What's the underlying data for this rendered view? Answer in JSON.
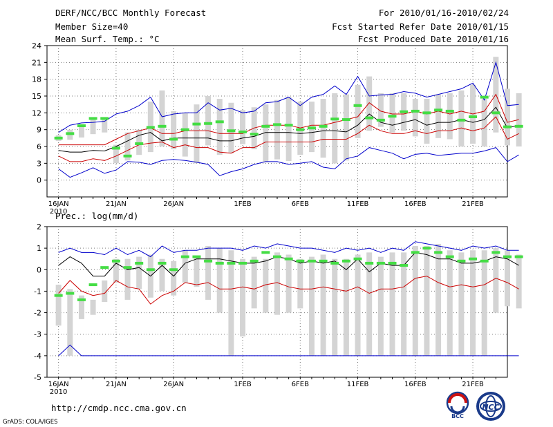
{
  "header": {
    "title": "DERF/NCC/BCC Monthly Forecast",
    "member_size": "Member Size=40",
    "variable": "Mean Surf. Temp.: °C",
    "period": "For 2010/01/16-2010/02/24",
    "start_date": "Fcst Started Refer Date 2010/01/15",
    "produced": "Fcst Produced Date 2010/01/16"
  },
  "footer": {
    "url": "http://cmdp.ncc.cma.gov.cn",
    "grads": "GrADS: COLA/IGES",
    "logo_left_text": "BCC",
    "logo_right_text": "NCC"
  },
  "colors": {
    "max_line": "#0000cc",
    "spread_line": "#cc0000",
    "mean_line": "#000000",
    "box": "#d4d4d4",
    "obs_marker": "#44dd44",
    "grid": "#777777"
  },
  "chart_data": [
    {
      "type": "line",
      "title": "Mean Surf. Temp.: °C",
      "x_labels": [
        "16JAN\n2010",
        "21JAN",
        "26JAN",
        "1FEB",
        "6FEB",
        "11FEB",
        "16FEB",
        "21FEB"
      ],
      "x_label_days": [
        0,
        5,
        10,
        16,
        21,
        26,
        31,
        36
      ],
      "x_range": [
        -1,
        39
      ],
      "ylim": [
        -3,
        24
      ],
      "yticks": [
        0,
        3,
        6,
        9,
        12,
        15,
        18,
        21,
        24
      ],
      "series": [
        {
          "name": "max",
          "values": [
            2,
            0.5,
            1.3,
            2.2,
            1.2,
            1.8,
            3.3,
            3.2,
            2.8,
            3.5,
            3.7,
            3.5,
            3.2,
            2.8,
            0.8,
            1.5,
            2,
            2.8,
            3.3,
            3.3,
            2.8,
            3,
            3.3,
            2.3,
            2,
            3.8,
            4.3,
            5.8,
            5.3,
            4.8,
            3.8,
            4.6,
            4.8,
            4.4,
            4.6,
            4.8,
            4.8,
            5.2,
            5.8,
            3.3,
            4.5
          ]
        },
        {
          "name": "q_low",
          "values": [
            4.3,
            3.3,
            3.3,
            3.8,
            3.5,
            4.3,
            5.3,
            6.3,
            6.6,
            6.8,
            5.8,
            6.3,
            5.8,
            5.8,
            5,
            4.8,
            5.8,
            5.8,
            6.8,
            6.8,
            6.8,
            6.8,
            6.8,
            7.3,
            7.3,
            7.3,
            8.3,
            9.8,
            8.8,
            8.3,
            8.3,
            8.8,
            8.3,
            8.8,
            8.8,
            9.3,
            8.8,
            9.3,
            11.3,
            7.3,
            8.3
          ]
        },
        {
          "name": "mean",
          "values": [
            5.3,
            5,
            5,
            5.3,
            5.2,
            6,
            7,
            8,
            8.5,
            7,
            7.5,
            7.5,
            7.5,
            7.5,
            7,
            7,
            7.5,
            7.8,
            8.5,
            8.5,
            8.5,
            8.3,
            8.5,
            8.8,
            8.8,
            8.6,
            9.8,
            11.8,
            10.3,
            9.8,
            10.3,
            10.8,
            9.8,
            10.3,
            10.3,
            10.8,
            10.3,
            10.8,
            13,
            9.3,
            9.8
          ]
        },
        {
          "name": "q_high",
          "values": [
            6.3,
            6.3,
            6.3,
            6.3,
            6.3,
            7.3,
            8.3,
            8.8,
            9.3,
            8.3,
            8.3,
            8.8,
            8.8,
            8.8,
            8.3,
            8.3,
            8.3,
            9.3,
            9.8,
            9.8,
            9.8,
            9.3,
            9.8,
            9.8,
            10.3,
            10.8,
            11.3,
            13.8,
            12.3,
            11.8,
            11.8,
            12.3,
            11.8,
            12.3,
            11.8,
            12.3,
            11.8,
            12.3,
            15.3,
            10.3,
            10.8
          ]
        },
        {
          "name": "min_top",
          "values": [
            8.5,
            9.8,
            10.2,
            10.3,
            10.5,
            11.8,
            12.3,
            13.3,
            14.8,
            11.3,
            11.8,
            12,
            12,
            13.8,
            12.5,
            12.8,
            12,
            12.3,
            13.8,
            14,
            14.8,
            13.3,
            14.8,
            15.3,
            16.8,
            15.3,
            18.5,
            15,
            15.2,
            15.3,
            15.8,
            15.5,
            14.8,
            15.3,
            15.8,
            16.3,
            17.3,
            14.3,
            21,
            13.3,
            13.5
          ]
        },
        {
          "name": "box_low",
          "values": [
            7,
            7.2,
            7.6,
            8.2,
            8.5,
            3,
            3.5,
            4.5,
            5,
            6,
            5.5,
            4.2,
            3,
            6.2,
            4.5,
            4.8,
            6.4,
            5.5,
            3.2,
            3.7,
            3.4,
            4.5,
            5,
            4,
            3,
            3.5,
            7.5,
            8.8,
            9.5,
            8.5,
            8.8,
            7.8,
            6.5,
            7.5,
            7.3,
            6,
            6.5,
            6,
            8.5,
            6.2,
            6
          ]
        },
        {
          "name": "box_high",
          "values": [
            8,
            9,
            10,
            11.2,
            11.2,
            6.3,
            8.5,
            9,
            14,
            16,
            12.3,
            12,
            13.5,
            15,
            14.5,
            13.8,
            12.5,
            13,
            13.5,
            14.3,
            14.8,
            14,
            14,
            14.5,
            15.5,
            15.3,
            17,
            18.5,
            15.5,
            15.5,
            15.5,
            14.5,
            14.5,
            15.3,
            15.5,
            16,
            17,
            14.5,
            22,
            16.3,
            15.5
          ]
        },
        {
          "name": "observed",
          "values": [
            7.5,
            8.3,
            9.7,
            11,
            11,
            5.7,
            4.3,
            6.5,
            9.4,
            9.6,
            7.3,
            9,
            10,
            10.1,
            10.4,
            8.8,
            8.6,
            8.2,
            9.6,
            9.9,
            9.8,
            9,
            9.3,
            9.6,
            10.9,
            10.8,
            13.3,
            11.1,
            10.7,
            11.4,
            12.2,
            12.3,
            12,
            12.5,
            12.3,
            10.7,
            11.3,
            14.8,
            12,
            9.5,
            9.6
          ]
        }
      ]
    },
    {
      "type": "line",
      "title": "Prec.: log(mm/d)",
      "x_labels": [
        "16JAN\n2010",
        "21JAN",
        "26JAN",
        "1FEB",
        "6FEB",
        "11FEB",
        "16FEB",
        "21FEB"
      ],
      "x_label_days": [
        0,
        5,
        10,
        16,
        21,
        26,
        31,
        36
      ],
      "x_range": [
        -1,
        39
      ],
      "ylim": [
        -5,
        2
      ],
      "yticks": [
        -5,
        -4,
        -3,
        -2,
        -1,
        0,
        1,
        2
      ],
      "series": [
        {
          "name": "max",
          "values": [
            0.8,
            1,
            0.8,
            0.8,
            0.7,
            1,
            0.7,
            0.9,
            0.6,
            1.1,
            0.8,
            0.9,
            0.9,
            1,
            1,
            1,
            0.9,
            1.1,
            1,
            1.2,
            1.1,
            1,
            1,
            0.9,
            0.8,
            1,
            0.9,
            1,
            0.8,
            1,
            0.9,
            1.3,
            1.2,
            1.1,
            1,
            0.9,
            1.1,
            1,
            1.1,
            0.9,
            0.9
          ]
        },
        {
          "name": "mean",
          "values": [
            0.2,
            0.6,
            0.3,
            -0.3,
            -0.3,
            0.3,
            0,
            0.1,
            -0.3,
            0.2,
            -0.3,
            0.3,
            0.5,
            0.5,
            0.5,
            0.4,
            0.3,
            0.3,
            0.4,
            0.6,
            0.5,
            0.3,
            0.4,
            0.3,
            0.4,
            0,
            0.5,
            -0.1,
            0.3,
            0.2,
            0.2,
            0.8,
            0.7,
            0.5,
            0.5,
            0.3,
            0.3,
            0.4,
            0.6,
            0.5,
            0.2
          ]
        },
        {
          "name": "q_low",
          "values": [
            -1.1,
            -0.5,
            -1,
            -1.2,
            -1.1,
            -0.5,
            -0.8,
            -0.9,
            -1.6,
            -1.2,
            -1,
            -0.6,
            -0.7,
            -0.6,
            -0.9,
            -0.9,
            -0.8,
            -0.9,
            -0.7,
            -0.6,
            -0.8,
            -0.9,
            -0.9,
            -0.8,
            -0.9,
            -1,
            -0.8,
            -1.1,
            -0.9,
            -0.9,
            -0.8,
            -0.4,
            -0.3,
            -0.6,
            -0.8,
            -0.7,
            -0.8,
            -0.7,
            -0.4,
            -0.6,
            -0.9
          ]
        },
        {
          "name": "min",
          "values": [
            -4,
            -3.5,
            -4,
            -4,
            -4,
            -4,
            -4,
            -4,
            -4,
            -4,
            -4,
            -4,
            -4,
            -4,
            -4,
            -4,
            -4,
            -4,
            -4,
            -4,
            -4,
            -4,
            -4,
            -4,
            -4,
            -4,
            -4,
            -4,
            -4,
            -4,
            -4,
            -4,
            -4,
            -4,
            -4,
            -4,
            -4,
            -4,
            -4,
            -4,
            -4
          ]
        },
        {
          "name": "box_low",
          "values": [
            -2.6,
            -4,
            -2.3,
            -2.1,
            -1.5,
            -0.6,
            -1.4,
            -0.9,
            -1.3,
            -1,
            -1.2,
            -0.6,
            -0.8,
            -1.4,
            -2,
            -4,
            -3.1,
            -1.8,
            -2,
            -2.1,
            -2,
            -1.8,
            -4,
            -4,
            -4,
            -4,
            -4,
            -4,
            -4,
            -4,
            -4,
            -4,
            -4,
            -4,
            -4,
            -4,
            -4,
            -4,
            -2,
            -1.7,
            -1.8
          ]
        },
        {
          "name": "box_high",
          "values": [
            -0.7,
            -0.9,
            -1.2,
            -1.4,
            -0.5,
            0.5,
            0.5,
            0.6,
            0.7,
            0.5,
            0.4,
            0.9,
            0.6,
            1.1,
            1,
            0.9,
            0.5,
            0.6,
            0.5,
            0.8,
            0.7,
            0.5,
            0.6,
            0.7,
            0.5,
            0.5,
            0.7,
            0.8,
            0.6,
            0.8,
            0.8,
            1.1,
            1.1,
            1.2,
            0.9,
            0.8,
            0.9,
            0.9,
            1,
            0.9,
            0.7
          ]
        },
        {
          "name": "observed",
          "values": [
            -1.2,
            -1.1,
            -1.4,
            -0.7,
            0.1,
            0.4,
            0.1,
            0.3,
            0,
            0.3,
            0,
            0.6,
            0.6,
            0.4,
            0.3,
            0.3,
            0.3,
            0.4,
            0.8,
            0.6,
            0.5,
            0.4,
            0.4,
            0.4,
            0.3,
            0.4,
            0.5,
            0.3,
            0.3,
            0.3,
            0.2,
            0.8,
            1,
            0.8,
            0.6,
            0.4,
            0.5,
            0.4,
            0.8,
            0.6,
            0.6
          ]
        }
      ]
    }
  ]
}
